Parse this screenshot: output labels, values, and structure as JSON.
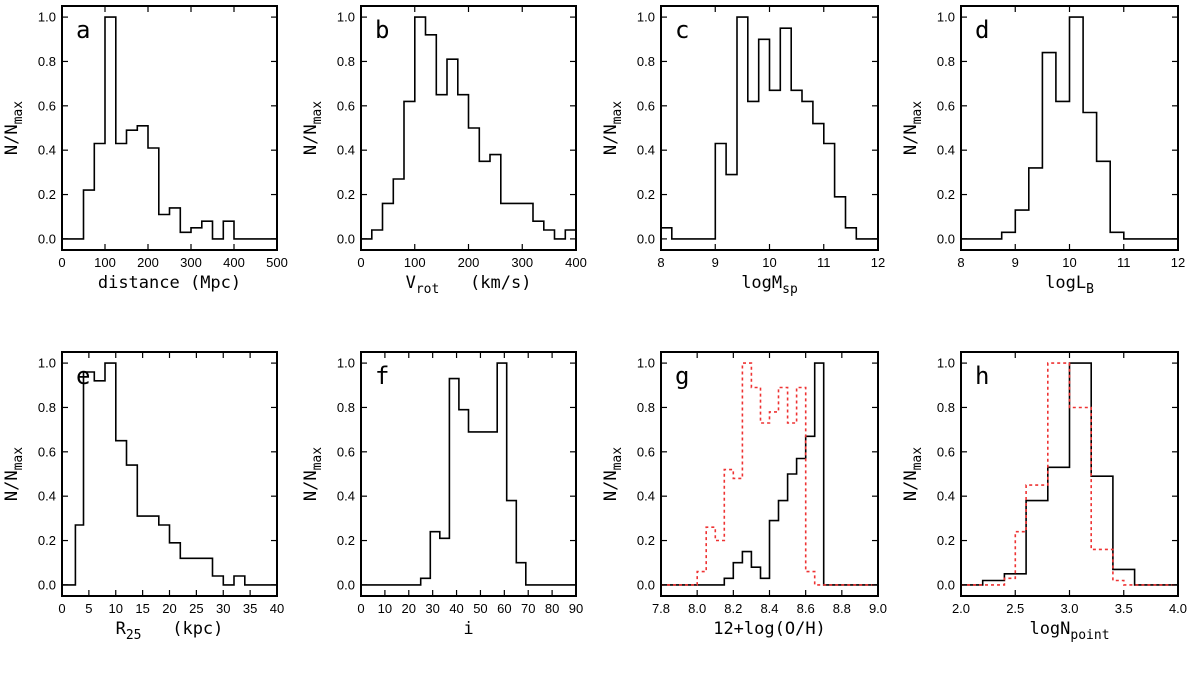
{
  "chart_data": [
    {
      "panel": "a",
      "type": "histogram",
      "xlabel": "distance   (Mpc)",
      "ylabel": "N/N",
      "ylabel_sub": "max",
      "xlim": [
        0,
        500
      ],
      "ylim": [
        -0.05,
        1.05
      ],
      "xticks": [
        0,
        100,
        200,
        300,
        400,
        500
      ],
      "xtick_labels": [
        "0",
        "100",
        "200",
        "300",
        "400",
        "500"
      ],
      "yticks": [
        0,
        0.2,
        0.4,
        0.6,
        0.8,
        1.0
      ],
      "ytick_labels": [
        "0.0",
        "0.2",
        "0.4",
        "0.6",
        "0.8",
        "1.0"
      ],
      "series": [
        {
          "name": "main",
          "color": "#000000",
          "dashed": false,
          "edges": [
            0,
            50,
            75,
            100,
            125,
            150,
            175,
            200,
            225,
            250,
            275,
            300,
            325,
            350,
            375,
            400,
            425,
            500
          ],
          "values": [
            0,
            0.22,
            0.43,
            1.0,
            0.43,
            0.49,
            0.51,
            0.41,
            0.11,
            0.14,
            0.03,
            0.05,
            0.08,
            0.0,
            0.08,
            0.0,
            0.0
          ]
        }
      ]
    },
    {
      "panel": "b",
      "type": "histogram",
      "xlabel": "(km/s)",
      "xlabel_main": "V",
      "xlabel_sub": "rot",
      "ylabel": "N/N",
      "ylabel_sub": "max",
      "xlim": [
        0,
        400
      ],
      "ylim": [
        -0.05,
        1.05
      ],
      "xticks": [
        0,
        100,
        200,
        300,
        400
      ],
      "xtick_labels": [
        "0",
        "100",
        "200",
        "300",
        "400"
      ],
      "yticks": [
        0,
        0.2,
        0.4,
        0.6,
        0.8,
        1.0
      ],
      "ytick_labels": [
        "0.0",
        "0.2",
        "0.4",
        "0.6",
        "0.8",
        "1.0"
      ],
      "series": [
        {
          "name": "main",
          "color": "#000000",
          "dashed": false,
          "edges": [
            0,
            20,
            40,
            60,
            80,
            100,
            120,
            140,
            160,
            180,
            200,
            220,
            240,
            260,
            280,
            300,
            320,
            340,
            360,
            380,
            400
          ],
          "values": [
            0.0,
            0.04,
            0.16,
            0.27,
            0.62,
            1.0,
            0.92,
            0.65,
            0.81,
            0.65,
            0.5,
            0.35,
            0.38,
            0.16,
            0.16,
            0.16,
            0.08,
            0.04,
            0.0,
            0.04
          ]
        }
      ]
    },
    {
      "panel": "c",
      "type": "histogram",
      "xlabel": "logM",
      "xlabel_sub": "sp",
      "ylabel": "N/N",
      "ylabel_sub": "max",
      "xlim": [
        8,
        12
      ],
      "ylim": [
        -0.05,
        1.05
      ],
      "xticks": [
        8,
        9,
        10,
        11,
        12
      ],
      "xtick_labels": [
        "8",
        "9",
        "10",
        "11",
        "12"
      ],
      "yticks": [
        0,
        0.2,
        0.4,
        0.6,
        0.8,
        1.0
      ],
      "ytick_labels": [
        "0.0",
        "0.2",
        "0.4",
        "0.6",
        "0.8",
        "1.0"
      ],
      "series": [
        {
          "name": "main",
          "color": "#000000",
          "dashed": false,
          "edges": [
            8.0,
            8.2,
            9.0,
            9.2,
            9.4,
            9.6,
            9.8,
            10.0,
            10.2,
            10.4,
            10.6,
            10.8,
            11.0,
            11.2,
            11.4,
            11.6,
            11.8,
            12.0
          ],
          "values": [
            0.05,
            0.0,
            0.43,
            0.29,
            1.0,
            0.62,
            0.9,
            0.67,
            0.95,
            0.67,
            0.62,
            0.52,
            0.43,
            0.19,
            0.05,
            0.0,
            0.0
          ]
        }
      ]
    },
    {
      "panel": "d",
      "type": "histogram",
      "xlabel": "logL",
      "xlabel_sub": "B",
      "ylabel": "N/N",
      "ylabel_sub": "max",
      "xlim": [
        8,
        12
      ],
      "ylim": [
        -0.05,
        1.05
      ],
      "xticks": [
        8,
        9,
        10,
        11,
        12
      ],
      "xtick_labels": [
        "8",
        "9",
        "10",
        "11",
        "12"
      ],
      "yticks": [
        0,
        0.2,
        0.4,
        0.6,
        0.8,
        1.0
      ],
      "ytick_labels": [
        "0.0",
        "0.2",
        "0.4",
        "0.6",
        "0.8",
        "1.0"
      ],
      "series": [
        {
          "name": "main",
          "color": "#000000",
          "dashed": false,
          "edges": [
            8.0,
            8.75,
            9.0,
            9.25,
            9.5,
            9.75,
            10.0,
            10.25,
            10.5,
            10.75,
            11.0,
            12.0
          ],
          "values": [
            0.0,
            0.03,
            0.13,
            0.32,
            0.84,
            0.62,
            1.0,
            0.57,
            0.35,
            0.03,
            0.0
          ]
        }
      ]
    },
    {
      "panel": "e",
      "type": "histogram",
      "xlabel": "(kpc)",
      "xlabel_main": "R",
      "xlabel_sub": "25",
      "ylabel": "N/N",
      "ylabel_sub": "max",
      "xlim": [
        0,
        40
      ],
      "ylim": [
        -0.05,
        1.05
      ],
      "xticks": [
        0,
        5,
        10,
        15,
        20,
        25,
        30,
        35,
        40
      ],
      "xtick_labels": [
        "0",
        "5",
        "10",
        "15",
        "20",
        "25",
        "30",
        "35",
        "40"
      ],
      "yticks": [
        0,
        0.2,
        0.4,
        0.6,
        0.8,
        1.0
      ],
      "ytick_labels": [
        "0.0",
        "0.2",
        "0.4",
        "0.6",
        "0.8",
        "1.0"
      ],
      "series": [
        {
          "name": "main",
          "color": "#000000",
          "dashed": false,
          "edges": [
            0,
            2.5,
            4,
            6,
            8,
            10,
            12,
            14,
            16,
            18,
            20,
            22,
            24,
            26,
            28,
            30,
            32,
            34,
            36,
            40
          ],
          "values": [
            0.0,
            0.27,
            0.96,
            0.92,
            1.0,
            0.65,
            0.54,
            0.31,
            0.31,
            0.27,
            0.19,
            0.12,
            0.12,
            0.12,
            0.04,
            0.0,
            0.04,
            0.0,
            0.0
          ]
        }
      ]
    },
    {
      "panel": "f",
      "type": "histogram",
      "xlabel": "i",
      "ylabel": "N/N",
      "ylabel_sub": "max",
      "xlim": [
        0,
        90
      ],
      "ylim": [
        -0.05,
        1.05
      ],
      "xticks": [
        0,
        10,
        20,
        30,
        40,
        50,
        60,
        70,
        80,
        90
      ],
      "xtick_labels": [
        "0",
        "10",
        "20",
        "30",
        "40",
        "50",
        "60",
        "70",
        "80",
        "90"
      ],
      "yticks": [
        0,
        0.2,
        0.4,
        0.6,
        0.8,
        1.0
      ],
      "ytick_labels": [
        "0.0",
        "0.2",
        "0.4",
        "0.6",
        "0.8",
        "1.0"
      ],
      "series": [
        {
          "name": "main",
          "color": "#000000",
          "dashed": false,
          "edges": [
            0,
            25,
            29,
            33,
            37,
            41,
            45,
            49,
            53,
            57,
            61,
            65,
            69,
            73,
            77,
            90
          ],
          "values": [
            0.0,
            0.03,
            0.24,
            0.21,
            0.93,
            0.79,
            0.69,
            0.69,
            0.69,
            1.0,
            0.38,
            0.1,
            0.0,
            0.0,
            0.0
          ]
        }
      ]
    },
    {
      "panel": "g",
      "type": "histogram",
      "xlabel": "12+log(O/H)",
      "ylabel": "N/N",
      "ylabel_sub": "max",
      "xlim": [
        7.8,
        9.0
      ],
      "ylim": [
        -0.05,
        1.05
      ],
      "xticks": [
        7.8,
        8.0,
        8.2,
        8.4,
        8.6,
        8.8,
        9.0
      ],
      "xtick_labels": [
        "7.8",
        "8.0",
        "8.2",
        "8.4",
        "8.6",
        "8.8",
        "9.0"
      ],
      "yticks": [
        0,
        0.2,
        0.4,
        0.6,
        0.8,
        1.0
      ],
      "ytick_labels": [
        "0.0",
        "0.2",
        "0.4",
        "0.6",
        "0.8",
        "1.0"
      ],
      "series": [
        {
          "name": "main",
          "color": "#000000",
          "dashed": false,
          "edges": [
            7.8,
            8.15,
            8.2,
            8.25,
            8.3,
            8.35,
            8.4,
            8.45,
            8.5,
            8.55,
            8.6,
            8.65,
            8.7,
            8.75,
            9.0
          ],
          "values": [
            0.0,
            0.03,
            0.1,
            0.15,
            0.08,
            0.03,
            0.29,
            0.38,
            0.5,
            0.57,
            0.67,
            1.0,
            0.0,
            0.0
          ]
        },
        {
          "name": "comparison",
          "color": "#ee3333",
          "dashed": true,
          "edges": [
            7.8,
            8.0,
            8.05,
            8.1,
            8.15,
            8.2,
            8.25,
            8.3,
            8.35,
            8.4,
            8.45,
            8.5,
            8.55,
            8.6,
            8.65,
            9.0
          ],
          "values": [
            0.0,
            0.06,
            0.26,
            0.2,
            0.52,
            0.48,
            1.0,
            0.89,
            0.73,
            0.78,
            0.89,
            0.73,
            0.89,
            0.06,
            0.0
          ]
        }
      ]
    },
    {
      "panel": "h",
      "type": "histogram",
      "xlabel": "logN",
      "xlabel_sub": "point",
      "ylabel": "N/N",
      "ylabel_sub": "max",
      "xlim": [
        2.0,
        4.0
      ],
      "ylim": [
        -0.05,
        1.05
      ],
      "xticks": [
        2.0,
        2.5,
        3.0,
        3.5,
        4.0
      ],
      "xtick_labels": [
        "2.0",
        "2.5",
        "3.0",
        "3.5",
        "4.0"
      ],
      "yticks": [
        0,
        0.2,
        0.4,
        0.6,
        0.8,
        1.0
      ],
      "ytick_labels": [
        "0.0",
        "0.2",
        "0.4",
        "0.6",
        "0.8",
        "1.0"
      ],
      "series": [
        {
          "name": "main",
          "color": "#000000",
          "dashed": false,
          "edges": [
            2.0,
            2.2,
            2.4,
            2.6,
            2.8,
            3.0,
            3.2,
            3.4,
            3.6,
            4.0
          ],
          "values": [
            0.0,
            0.02,
            0.05,
            0.38,
            0.53,
            1.0,
            0.49,
            0.07,
            0.0
          ]
        },
        {
          "name": "comparison",
          "color": "#ee3333",
          "dashed": true,
          "edges": [
            2.0,
            2.4,
            2.5,
            2.6,
            2.7,
            2.8,
            2.9,
            3.0,
            3.1,
            3.2,
            3.3,
            3.4,
            3.5,
            4.0
          ],
          "values": [
            0.0,
            0.03,
            0.24,
            0.45,
            0.45,
            1.0,
            1.0,
            0.8,
            0.8,
            0.16,
            0.16,
            0.02,
            0.0
          ]
        }
      ]
    }
  ]
}
